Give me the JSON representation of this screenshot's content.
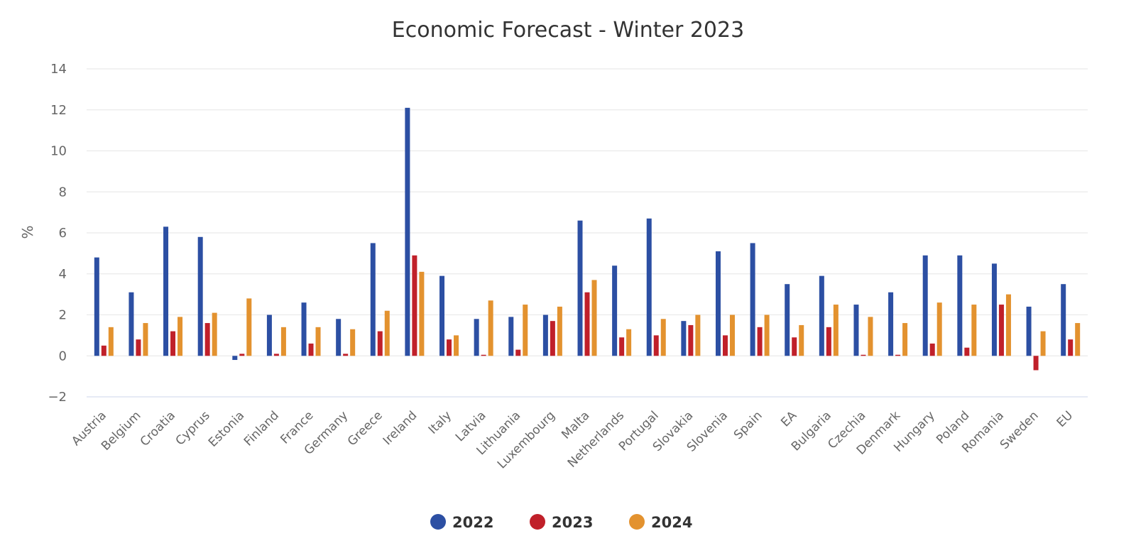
{
  "chart_data": {
    "type": "bar",
    "title": "Economic Forecast - Winter 2023",
    "xlabel": "",
    "ylabel": "%",
    "ylim": [
      -2,
      14
    ],
    "yticks": [
      -2,
      0,
      2,
      4,
      6,
      8,
      10,
      12,
      14
    ],
    "grid": true,
    "legend_position": "bottom",
    "categories": [
      "Austria",
      "Belgium",
      "Croatia",
      "Cyprus",
      "Estonia",
      "Finland",
      "France",
      "Germany",
      "Greece",
      "Ireland",
      "Italy",
      "Latvia",
      "Lithuania",
      "Luxembourg",
      "Malta",
      "Netherlands",
      "Portugal",
      "Slovakia",
      "Slovenia",
      "Spain",
      "EA",
      "Bulgaria",
      "Czechia",
      "Denmark",
      "Hungary",
      "Poland",
      "Romania",
      "Sweden",
      "EU"
    ],
    "series": [
      {
        "name": "2022",
        "color": "#2c4fa3",
        "values": [
          4.8,
          3.1,
          6.3,
          5.8,
          -0.2,
          2.0,
          2.6,
          1.8,
          5.5,
          12.1,
          3.9,
          1.8,
          1.9,
          2.0,
          6.6,
          4.4,
          6.7,
          1.7,
          5.1,
          5.5,
          3.5,
          3.9,
          2.5,
          3.1,
          4.9,
          4.9,
          4.5,
          2.4,
          3.5
        ]
      },
      {
        "name": "2023",
        "color": "#c0202a",
        "values": [
          0.5,
          0.8,
          1.2,
          1.6,
          0.1,
          0.1,
          0.6,
          0.1,
          1.2,
          4.9,
          0.8,
          0.0,
          0.3,
          1.7,
          3.1,
          0.9,
          1.0,
          1.5,
          1.0,
          1.4,
          0.9,
          1.4,
          0.0,
          0.0,
          0.6,
          0.4,
          2.5,
          -0.7,
          0.8
        ]
      },
      {
        "name": "2024",
        "color": "#e3922f",
        "values": [
          1.4,
          1.6,
          1.9,
          2.1,
          2.8,
          1.4,
          1.4,
          1.3,
          2.2,
          4.1,
          1.0,
          2.7,
          2.5,
          2.4,
          3.7,
          1.3,
          1.8,
          2.0,
          2.0,
          2.0,
          1.5,
          2.5,
          1.9,
          1.6,
          2.6,
          2.5,
          3.0,
          1.2,
          1.6
        ]
      }
    ]
  }
}
